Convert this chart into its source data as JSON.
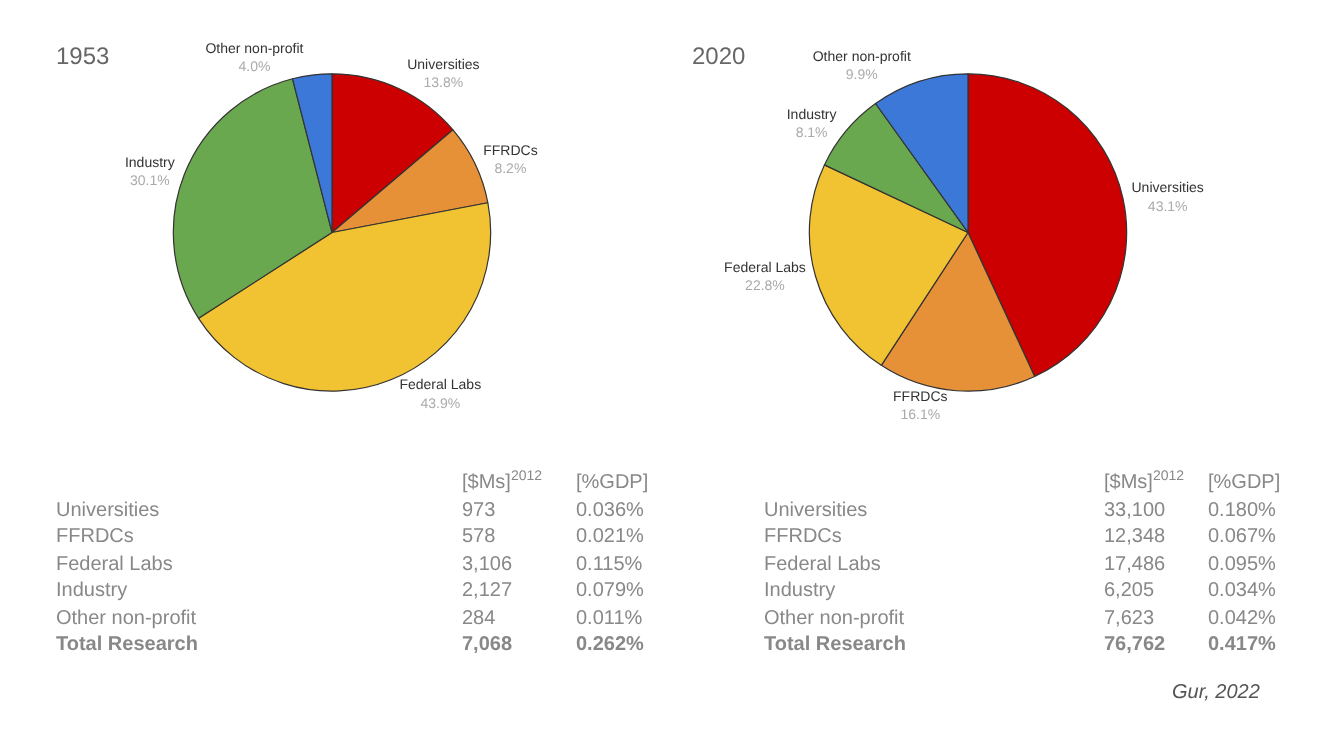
{
  "chart_data": [
    {
      "type": "pie",
      "title": "1953",
      "categories": [
        "Universities",
        "FFRDCs",
        "Federal Labs",
        "Industry",
        "Other non-profit"
      ],
      "values": [
        13.8,
        8.2,
        43.9,
        30.1,
        4.0
      ],
      "value_labels": [
        "13.8%",
        "8.2%",
        "43.9%",
        "30.1%",
        "4.0%"
      ],
      "colors": [
        "#cc0000",
        "#e69138",
        "#f1c232",
        "#6aa84f",
        "#3c78d8"
      ],
      "legend": false,
      "annotations": [
        "[$Ms]$^{2012}$",
        "[%GDP]",
        "Universities",
        "973",
        "0.036%",
        "FFRDCs",
        "578",
        "0.021%",
        "Federal Labs",
        "3,106",
        "0.115%",
        "Industry",
        "2,127",
        "0.079%",
        "Other non-profit",
        "284",
        "0.011%",
        "Total Research",
        "7,068",
        "0.262%"
      ]
    },
    {
      "type": "pie",
      "title": "2020",
      "categories": [
        "Universities",
        "FFRDCs",
        "Federal Labs",
        "Industry",
        "Other non-profit"
      ],
      "values": [
        43.1,
        16.1,
        22.8,
        8.1,
        9.9
      ],
      "value_labels": [
        "43.1%",
        "16.1%",
        "22.8%",
        "8.1%",
        "9.9%"
      ],
      "colors": [
        "#cc0000",
        "#e69138",
        "#f1c232",
        "#6aa84f",
        "#3c78d8"
      ],
      "legend": false,
      "annotations": [
        "[$Ms]$^{2012}$",
        "[%GDP]",
        "Universities",
        "33,100",
        "0.180%",
        "FFRDCs",
        "12,348",
        "0.067%",
        "Federal Labs",
        "17,486",
        "0.095%",
        "Industry",
        "6,205",
        "0.034%",
        "Other non-profit",
        "7,623",
        "0.042%",
        "Total Research",
        "76,762",
        "0.417%",
        "Gur, 2022"
      ]
    }
  ]
}
